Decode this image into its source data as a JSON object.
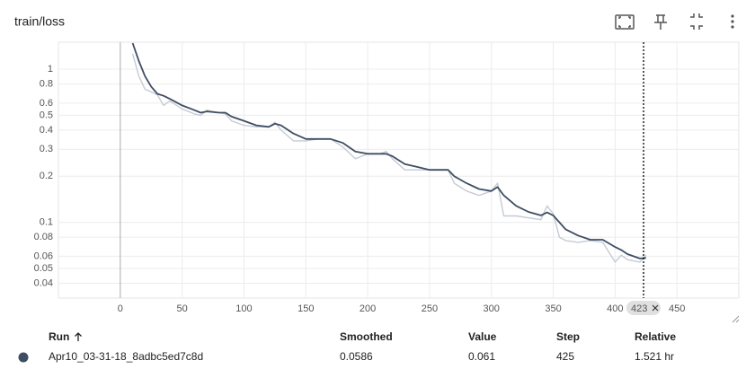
{
  "header": {
    "title": "train/loss"
  },
  "chart_data": {
    "type": "line",
    "log_scale_y": true,
    "grid": true,
    "x": [
      10,
      15,
      20,
      25,
      30,
      35,
      40,
      50,
      60,
      65,
      70,
      80,
      85,
      90,
      100,
      110,
      120,
      125,
      130,
      140,
      150,
      160,
      170,
      180,
      190,
      200,
      210,
      215,
      220,
      230,
      240,
      250,
      260,
      265,
      270,
      280,
      290,
      300,
      305,
      310,
      320,
      330,
      340,
      345,
      350,
      355,
      360,
      370,
      380,
      390,
      400,
      405,
      410,
      420,
      425
    ],
    "series": [
      {
        "color": "#c5cbd4",
        "values": [
          1.26,
          0.9,
          0.74,
          0.71,
          0.68,
          0.58,
          0.62,
          0.55,
          0.51,
          0.5,
          0.54,
          0.52,
          0.51,
          0.46,
          0.43,
          0.42,
          0.42,
          0.45,
          0.4,
          0.34,
          0.34,
          0.35,
          0.35,
          0.31,
          0.26,
          0.28,
          0.28,
          0.29,
          0.26,
          0.22,
          0.22,
          0.22,
          0.22,
          0.22,
          0.18,
          0.16,
          0.15,
          0.16,
          0.18,
          0.11,
          0.11,
          0.107,
          0.104,
          0.128,
          0.114,
          0.08,
          0.076,
          0.074,
          0.076,
          0.074,
          0.055,
          0.061,
          0.057,
          0.055,
          0.061
        ]
      },
      {
        "color": "#3f4d63",
        "values": [
          1.48,
          1.13,
          0.9,
          0.77,
          0.69,
          0.67,
          0.64,
          0.58,
          0.54,
          0.52,
          0.53,
          0.52,
          0.52,
          0.49,
          0.46,
          0.43,
          0.42,
          0.44,
          0.43,
          0.38,
          0.35,
          0.35,
          0.35,
          0.33,
          0.29,
          0.28,
          0.28,
          0.28,
          0.27,
          0.24,
          0.23,
          0.22,
          0.22,
          0.22,
          0.2,
          0.18,
          0.165,
          0.16,
          0.17,
          0.15,
          0.128,
          0.117,
          0.111,
          0.116,
          0.111,
          0.1,
          0.09,
          0.082,
          0.077,
          0.077,
          0.069,
          0.066,
          0.062,
          0.058,
          0.0586
        ]
      }
    ],
    "xlim": [
      -50,
      500
    ],
    "xticks": [
      0,
      50,
      100,
      150,
      200,
      250,
      300,
      350,
      400,
      450
    ],
    "ylim": [
      0.032,
      1.5
    ],
    "yticks": [
      1,
      0.8,
      0.6,
      0.5,
      0.4,
      0.3,
      0.2,
      0.1,
      0.08,
      0.06,
      0.05,
      0.04
    ],
    "cursor_step": 423
  },
  "table": {
    "columns": [
      "Run",
      "Smoothed",
      "Value",
      "Step",
      "Relative"
    ],
    "rows": [
      [
        "Apr10_03-31-18_8adbc5ed7c8d",
        "0.0586",
        "0.061",
        "425",
        "1.521 hr"
      ]
    ]
  }
}
